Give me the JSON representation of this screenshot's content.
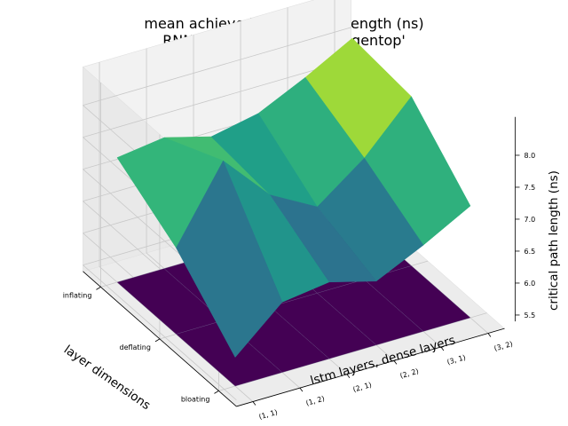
{
  "chart_data": {
    "type": "surface3d",
    "title": "mean achieved critical path length (ns)",
    "subtitle": "RNN models on circuit 'raygentop'",
    "xlabel": "lstm layers, dense layers",
    "ylabel": "layer dimensions",
    "zlabel": "critical path length (ns)",
    "x_categories": [
      "(1, 1)",
      "(1, 2)",
      "(2, 1)",
      "(2, 2)",
      "(3, 1)",
      "(3, 2)"
    ],
    "y_categories": [
      "inflating",
      "deflating",
      "bloating"
    ],
    "z_ticks": [
      "5.5",
      "6.0",
      "6.5",
      "7.0",
      "7.5",
      "8.0"
    ],
    "zlim": [
      5.4,
      8.2
    ],
    "floor_value": 5.4,
    "grid": true,
    "colormap": "viridis",
    "surface_points": [
      {
        "x": 0,
        "y": 0,
        "z": 7.35
      },
      {
        "x": 0,
        "y": 1,
        "z": 6.75
      },
      {
        "x": 0,
        "y": 2,
        "z": 5.85
      },
      {
        "x": 1,
        "y": 0,
        "z": 7.45
      },
      {
        "x": 1,
        "y": 1,
        "z": 7.9
      },
      {
        "x": 1,
        "y": 2,
        "z": 6.5
      },
      {
        "x": 2,
        "y": 0,
        "z": 7.25
      },
      {
        "x": 2,
        "y": 1,
        "z": 7.15
      },
      {
        "x": 2,
        "y": 2,
        "z": 6.6
      },
      {
        "x": 3,
        "y": 0,
        "z": 7.4
      },
      {
        "x": 3,
        "y": 1,
        "z": 6.75
      },
      {
        "x": 3,
        "y": 2,
        "z": 6.4
      },
      {
        "x": 4,
        "y": 0,
        "z": 7.75
      },
      {
        "x": 4,
        "y": 1,
        "z": 7.3
      },
      {
        "x": 4,
        "y": 2,
        "z": 6.75
      },
      {
        "x": 5,
        "y": 0,
        "z": 8.15
      },
      {
        "x": 5,
        "y": 1,
        "z": 8.05
      },
      {
        "x": 5,
        "y": 2,
        "z": 7.15
      }
    ]
  }
}
